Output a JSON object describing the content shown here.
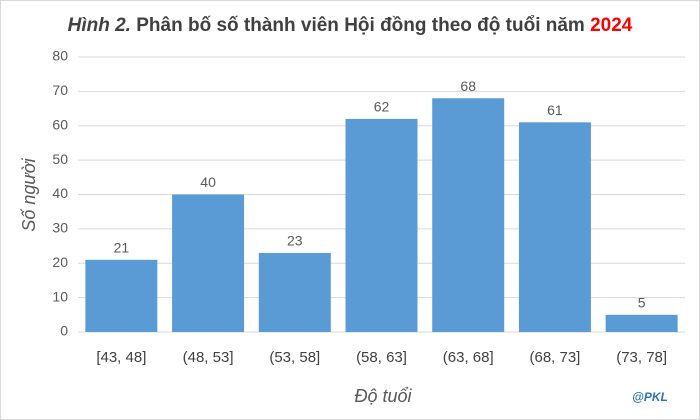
{
  "chart_data": {
    "type": "bar",
    "title": {
      "label": "Hình 2.",
      "text": "Phân bố số thành viên Hội đồng theo độ tuổi năm",
      "year": "2024"
    },
    "x_label": "Độ tuổi",
    "y_label": "Số người",
    "watermark": "@PKL",
    "categories": [
      "[43, 48]",
      "(48, 53]",
      "(53, 58]",
      "(58, 63]",
      "(63, 68]",
      "(68, 73]",
      "(73, 78]"
    ],
    "values": [
      21,
      40,
      23,
      62,
      68,
      61,
      5
    ],
    "color": "#5b9bd5",
    "ylim": [
      0,
      80
    ],
    "yticks": [
      0,
      10,
      20,
      30,
      40,
      50,
      60,
      70,
      80
    ],
    "grid": true
  }
}
